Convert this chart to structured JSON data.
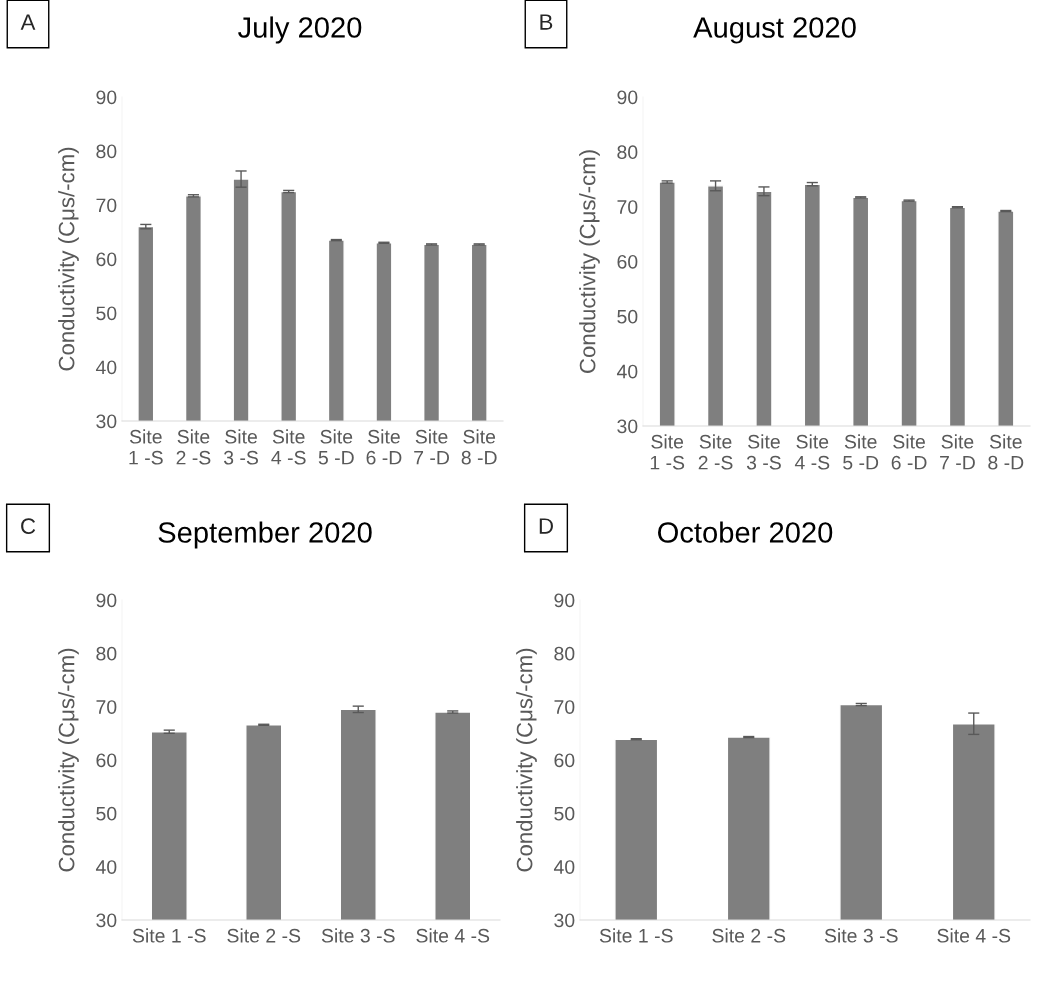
{
  "chart_data": [
    {
      "type": "bar",
      "title": "July 2020",
      "ylabel": "Conductivity (Cμs/-cm)",
      "annotations": [
        "A"
      ],
      "categories": [
        "Site 1 -S",
        "Site 2 -S",
        "Site 3 -S",
        "Site 4 -S",
        "Site 5 -D",
        "Site 6 -D",
        "Site 7 -D",
        "Site 8 -D"
      ],
      "values": [
        66,
        71.7,
        74.8,
        72.5,
        63.5,
        63,
        62.7,
        62.7
      ],
      "errors": [
        0.4,
        0.2,
        1.5,
        0.2,
        0.1,
        0.1,
        0.1,
        0.1
      ],
      "color": "#7f7f7f",
      "ylim": [
        30,
        90
      ],
      "yticks": [
        30,
        40,
        50,
        60,
        70,
        80,
        90
      ],
      "grid": false,
      "legend": false
    },
    {
      "type": "bar",
      "title": "August 2020",
      "ylabel": "Conductivity (Cμs/-cm)",
      "annotations": [
        "B"
      ],
      "categories": [
        "Site 1 -S",
        "Site 2 -S",
        "Site 3 -S",
        "Site 4 -S",
        "Site 5 -D",
        "Site 6 -D",
        "Site 7 -D",
        "Site 8 -D"
      ],
      "values": [
        74.5,
        73.8,
        72.8,
        74.1,
        71.7,
        71.1,
        69.9,
        69.2
      ],
      "errors": [
        0.2,
        0.9,
        0.8,
        0.3,
        0.1,
        0.1,
        0.1,
        0.1
      ],
      "color": "#7f7f7f",
      "ylim": [
        30,
        90
      ],
      "yticks": [
        30,
        40,
        50,
        60,
        70,
        80,
        90
      ],
      "grid": false,
      "legend": false
    },
    {
      "type": "bar",
      "title": "September 2020",
      "ylabel": "Conductivity (Cμs/-cm)",
      "annotations": [
        "C"
      ],
      "categories": [
        "Site 1 -S",
        "Site 2 -S",
        "Site 3 -S",
        "Site 4 -S"
      ],
      "values": [
        65.3,
        66.6,
        69.5,
        69
      ],
      "errors": [
        0.3,
        0.1,
        0.6,
        0.2
      ],
      "color": "#7f7f7f",
      "ylim": [
        30,
        90
      ],
      "yticks": [
        30,
        40,
        50,
        60,
        70,
        80,
        90
      ],
      "grid": false,
      "legend": false
    },
    {
      "type": "bar",
      "title": "October 2020",
      "ylabel": "Conductivity (Cμs/-cm)",
      "annotations": [
        "D"
      ],
      "categories": [
        "Site 1 -S",
        "Site 2 -S",
        "Site 3 -S",
        "Site 4 -S"
      ],
      "values": [
        63.9,
        64.3,
        70.4,
        66.8
      ],
      "errors": [
        0.1,
        0.1,
        0.2,
        2
      ],
      "color": "#7f7f7f",
      "ylim": [
        30,
        90
      ],
      "yticks": [
        30,
        40,
        50,
        60,
        70,
        80,
        90
      ],
      "grid": false,
      "legend": false
    }
  ]
}
